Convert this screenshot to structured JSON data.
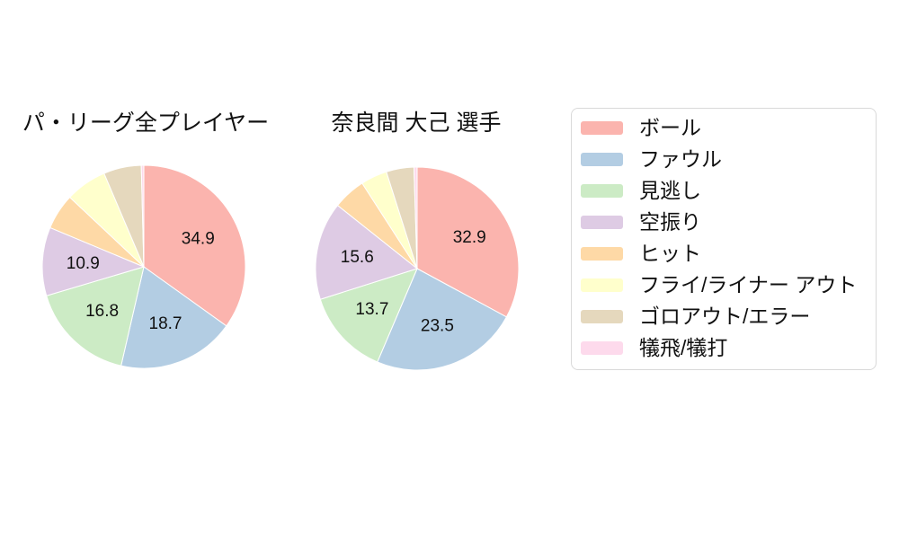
{
  "figure": {
    "background_color": "#ffffff",
    "text_color": "#111111",
    "legend_border_color": "#d9d9d9"
  },
  "legend": {
    "items": [
      {
        "label": "ボール",
        "color": "#fbb4ae"
      },
      {
        "label": "ファウル",
        "color": "#b3cde3"
      },
      {
        "label": "見逃し",
        "color": "#ccebc5"
      },
      {
        "label": "空振り",
        "color": "#decbe4"
      },
      {
        "label": "ヒット",
        "color": "#fed9a6"
      },
      {
        "label": "フライ/ライナー アウト",
        "color": "#ffffcc"
      },
      {
        "label": "ゴロアウト/エラー",
        "color": "#e5d8bd"
      },
      {
        "label": "犠飛/犠打",
        "color": "#fddaec"
      }
    ]
  },
  "chart_data": [
    {
      "type": "pie",
      "title": "パ・リーグ全プレイヤー",
      "categories": [
        "ボール",
        "ファウル",
        "見逃し",
        "空振り",
        "ヒット",
        "フライ/ライナー アウト",
        "ゴロアウト/エラー",
        "犠飛/犠打"
      ],
      "values": [
        34.9,
        18.7,
        16.8,
        10.9,
        5.7,
        6.6,
        6.0,
        0.4
      ],
      "value_labels": [
        "34.9",
        "18.7",
        "16.8",
        "10.9",
        "",
        "",
        "",
        ""
      ],
      "colors": [
        "#fbb4ae",
        "#b3cde3",
        "#ccebc5",
        "#decbe4",
        "#fed9a6",
        "#ffffcc",
        "#e5d8bd",
        "#fddaec"
      ],
      "start_angle_deg": 90,
      "direction": "clockwise",
      "legend_position": "right",
      "note_on_estimates": "values without visible labels estimated from slice arc angles"
    },
    {
      "type": "pie",
      "title": "奈良間 大己  選手",
      "categories": [
        "ボール",
        "ファウル",
        "見逃し",
        "空振り",
        "ヒット",
        "フライ/ライナー アウト",
        "ゴロアウト/エラー",
        "犠飛/犠打"
      ],
      "values": [
        32.9,
        23.5,
        13.7,
        15.6,
        5.2,
        4.2,
        4.4,
        0.5
      ],
      "value_labels": [
        "32.9",
        "23.5",
        "13.7",
        "15.6",
        "",
        "",
        "",
        ""
      ],
      "colors": [
        "#fbb4ae",
        "#b3cde3",
        "#ccebc5",
        "#decbe4",
        "#fed9a6",
        "#ffffcc",
        "#e5d8bd",
        "#fddaec"
      ],
      "start_angle_deg": 90,
      "direction": "clockwise",
      "legend_position": "right",
      "note_on_estimates": "values without visible labels estimated from slice arc angles"
    }
  ]
}
